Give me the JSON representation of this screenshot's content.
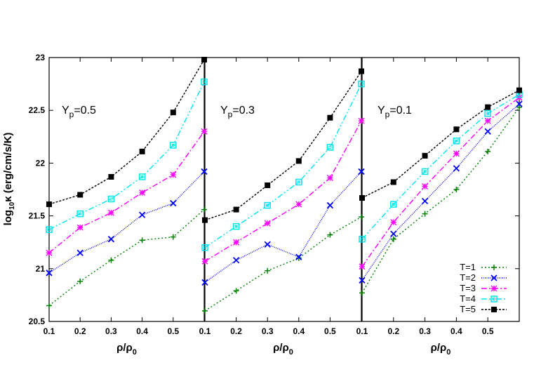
{
  "chart_data": {
    "type": "line",
    "ylabel": {
      "prefix": "log",
      "sub": "10",
      "rest": "κ (erg/cm/s/K)"
    },
    "xlabel": {
      "a": "ρ/ρ",
      "sub": "0"
    },
    "ylim": [
      20.5,
      23
    ],
    "yticks": [
      "20.5",
      "21",
      "21.5",
      "22",
      "22.5",
      "23"
    ],
    "xticks": [
      "0.1",
      "0.2",
      "0.3",
      "0.4",
      "0.5"
    ],
    "legend_position": "bottom-right",
    "series_styles": [
      {
        "name": "T=1",
        "color": "#008000",
        "marker": "plus",
        "dash": "2,3"
      },
      {
        "name": "T=2",
        "color": "#0000ff",
        "marker": "x",
        "dash": "1,1.5"
      },
      {
        "name": "T=3",
        "color": "#ff00ff",
        "marker": "star",
        "dash": "8,3,2,3"
      },
      {
        "name": "T=4",
        "color": "#00e5ee",
        "marker": "box",
        "dash": "8,3,2,3,2,3"
      },
      {
        "name": "T=5",
        "color": "#000000",
        "marker": "filled-box",
        "dash": "3,2"
      }
    ],
    "panels": [
      {
        "label": {
          "main": "Y",
          "sub": "p",
          "rest": "=0.5"
        },
        "x": [
          0.1,
          0.2,
          0.3,
          0.4,
          0.5,
          0.6
        ],
        "series": [
          {
            "name": "T=1",
            "values": [
              20.65,
              20.88,
              21.08,
              21.27,
              21.3,
              21.56
            ]
          },
          {
            "name": "T=2",
            "values": [
              20.96,
              21.15,
              21.28,
              21.51,
              21.62,
              21.92
            ]
          },
          {
            "name": "T=3",
            "values": [
              21.15,
              21.39,
              21.53,
              21.72,
              21.89,
              22.3
            ]
          },
          {
            "name": "T=4",
            "values": [
              21.37,
              21.52,
              21.66,
              21.87,
              22.17,
              22.77
            ]
          },
          {
            "name": "T=5",
            "values": [
              21.61,
              21.7,
              21.87,
              22.11,
              22.48,
              22.98
            ]
          }
        ]
      },
      {
        "label": {
          "main": "Y",
          "sub": "p",
          "rest": "=0.3"
        },
        "x": [
          0.1,
          0.2,
          0.3,
          0.4,
          0.5,
          0.6
        ],
        "series": [
          {
            "name": "T=1",
            "values": [
              20.6,
              20.79,
              20.98,
              21.1,
              21.32,
              21.49
            ]
          },
          {
            "name": "T=2",
            "values": [
              20.87,
              21.08,
              21.23,
              21.11,
              21.6,
              21.92
            ]
          },
          {
            "name": "T=3",
            "values": [
              21.07,
              21.25,
              21.43,
              21.61,
              21.86,
              22.4
            ]
          },
          {
            "name": "T=4",
            "values": [
              21.2,
              21.4,
              21.6,
              21.82,
              22.15,
              22.75
            ]
          },
          {
            "name": "T=5",
            "values": [
              21.46,
              21.56,
              21.79,
              22.02,
              22.43,
              22.87
            ]
          }
        ]
      },
      {
        "label": {
          "main": "Y",
          "sub": "p",
          "rest": "=0.1"
        },
        "x": [
          0.1,
          0.2,
          0.3,
          0.4,
          0.5,
          0.6
        ],
        "series": [
          {
            "name": "T=1",
            "values": [
              20.77,
              21.28,
              21.52,
              21.75,
              22.11,
              22.53
            ]
          },
          {
            "name": "T=2",
            "values": [
              20.89,
              21.33,
              21.64,
              21.95,
              22.3,
              22.56
            ]
          },
          {
            "name": "T=3",
            "values": [
              21.02,
              21.44,
              21.78,
              22.09,
              22.4,
              22.62
            ]
          },
          {
            "name": "T=4",
            "values": [
              21.28,
              21.61,
              21.92,
              22.21,
              22.47,
              22.65
            ]
          },
          {
            "name": "T=5",
            "values": [
              21.67,
              21.82,
              22.07,
              22.32,
              22.53,
              22.69
            ]
          }
        ]
      }
    ]
  }
}
